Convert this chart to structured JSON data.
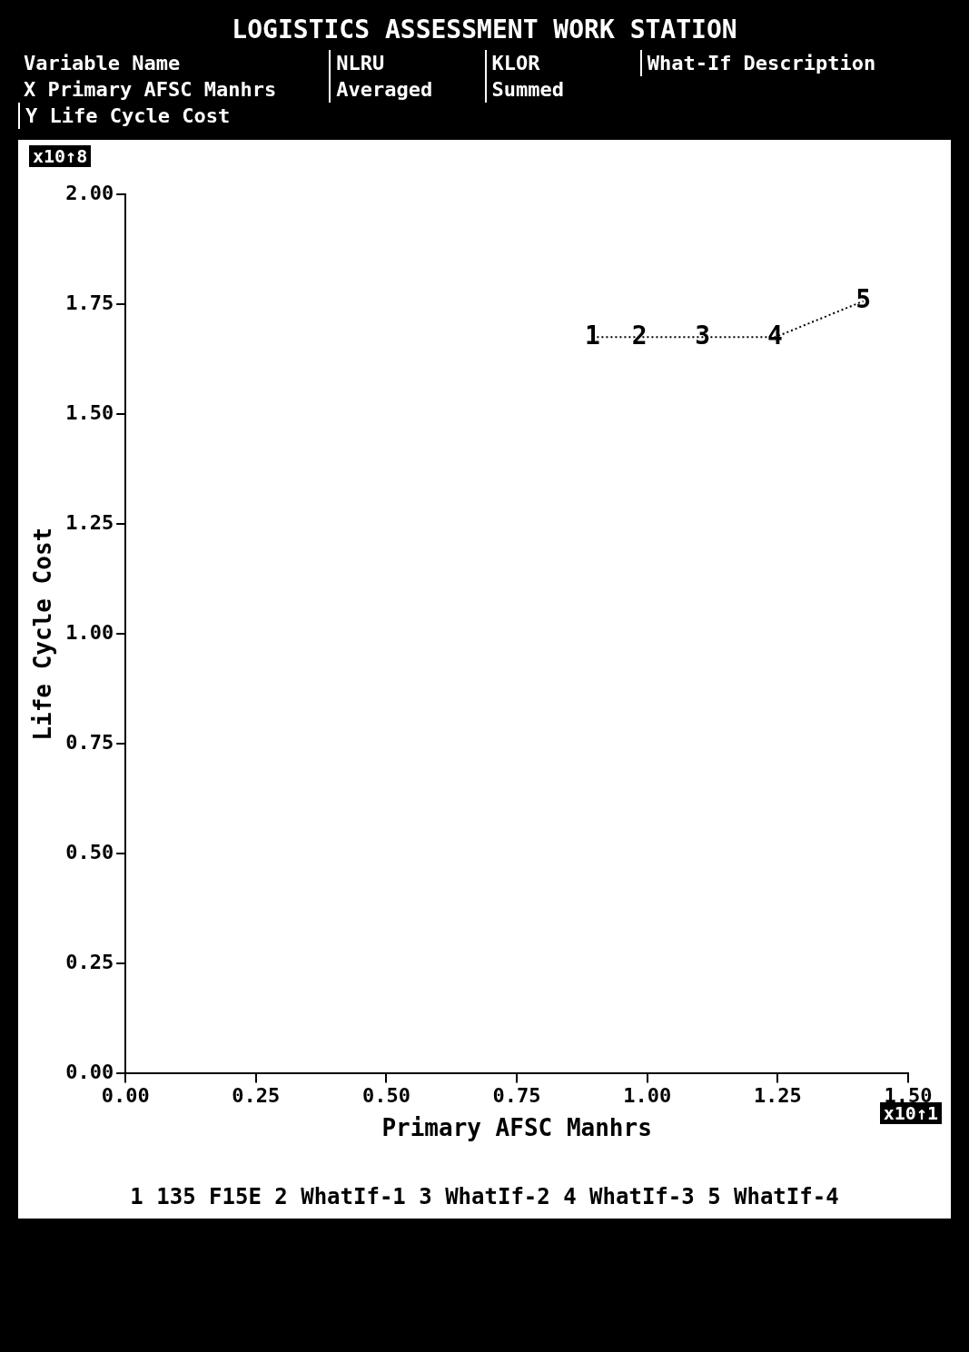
{
  "chart_data": {
    "type": "line",
    "title": "LOGISTICS ASSESSMENT WORK STATION",
    "xlabel": "Primary AFSC Manhrs",
    "ylabel": "Life Cycle Cost",
    "annotations": [
      "Variable Name",
      "NLRU",
      "KLOR",
      "What-If Description",
      "X Primary AFSC Manhrs",
      "Averaged",
      "Summed",
      "Y Life Cycle Cost",
      "x10↑1",
      "x10↑8",
      "1 135 F15E 2 WhatIf-1 3 WhatIf-2 4 WhatIf-3 5 WhatIf-4",
      {
        "text": "1",
        "x": 0.895,
        "y": 1.675
      },
      {
        "text": "2",
        "x": 0.985,
        "y": 1.675
      },
      {
        "text": "3",
        "x": 1.106,
        "y": 1.675
      },
      {
        "text": "4",
        "x": 1.245,
        "y": 1.675
      },
      {
        "text": "5",
        "x": 1.414,
        "y": 1.757
      }
    ],
    "x": [
      0.895,
      0.985,
      1.106,
      1.245,
      1.414
    ],
    "series": [
      {
        "color": "#000000",
        "values": [
          1.675,
          1.675,
          1.675,
          1.675,
          1.757
        ]
      }
    ],
    "xlim": [
      0,
      1.5
    ],
    "xticks": [
      {
        "value": 0,
        "label": "0.00"
      },
      {
        "value": 0.25,
        "label": "0.25"
      },
      {
        "value": 0.5,
        "label": "0.50"
      },
      {
        "value": 0.75,
        "label": "0.75"
      },
      {
        "value": 1,
        "label": "1.00"
      },
      {
        "value": 1.25,
        "label": "1.25"
      },
      {
        "value": 1.5,
        "label": "1.50"
      }
    ],
    "ylim": [
      0,
      2
    ],
    "yticks": [
      {
        "value": 0,
        "label": "0.00"
      },
      {
        "value": 0.25,
        "label": "0.25"
      },
      {
        "value": 0.5,
        "label": "0.50"
      },
      {
        "value": 0.75,
        "label": "0.75"
      },
      {
        "value": 1,
        "label": "1.00"
      },
      {
        "value": 1.25,
        "label": "1.25"
      },
      {
        "value": 1.5,
        "label": "1.50"
      },
      {
        "value": 1.75,
        "label": "1.75"
      },
      {
        "value": 2,
        "label": "2.00"
      }
    ],
    "grid": false,
    "line_style": "dotted"
  }
}
